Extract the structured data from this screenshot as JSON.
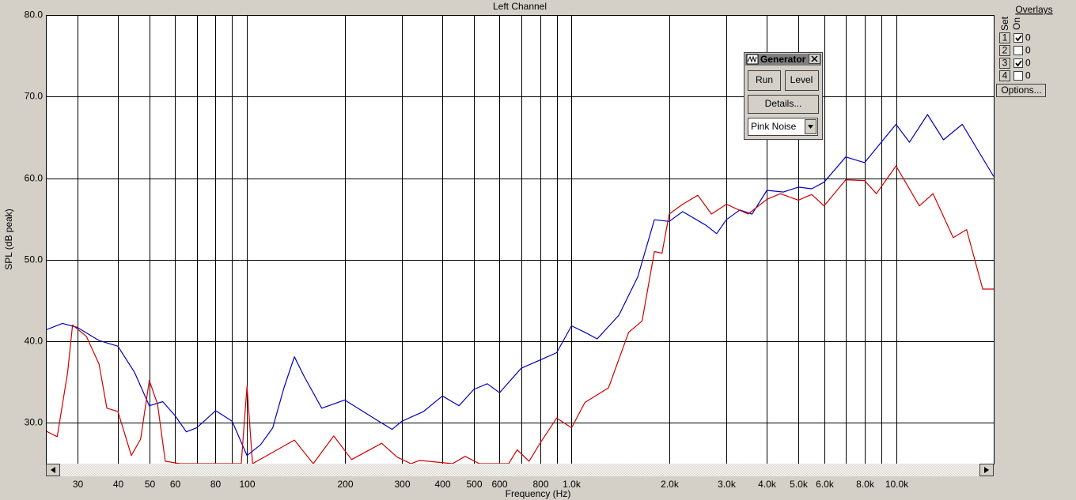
{
  "chart_data": {
    "type": "line",
    "title": "Left Channel",
    "xlabel": "Frequency (Hz)",
    "ylabel": "SPL (dB peak)",
    "xscale": "log",
    "xlim": [
      24,
      20000
    ],
    "ylim": [
      25,
      80
    ],
    "xticks": [
      30,
      40,
      50,
      60,
      80,
      100,
      200,
      300,
      400,
      500,
      600,
      800,
      {
        "value": 1000,
        "label": "1.0k"
      },
      {
        "value": 2000,
        "label": "2.0k"
      },
      {
        "value": 3000,
        "label": "3.0k"
      },
      {
        "value": 4000,
        "label": "4.0k"
      },
      {
        "value": 5000,
        "label": "5.0k"
      },
      {
        "value": 6000,
        "label": "6.0k"
      },
      {
        "value": 8000,
        "label": "8.0k"
      },
      {
        "value": 10000,
        "label": "10.0k"
      }
    ],
    "xgrid_minor": [
      70,
      90,
      700,
      900,
      7000,
      9000
    ],
    "yticks": [
      {
        "value": 30,
        "label": "30.0"
      },
      {
        "value": 40,
        "label": "40.0"
      },
      {
        "value": 50,
        "label": "50.0"
      },
      {
        "value": 60,
        "label": "60.0"
      },
      {
        "value": 70,
        "label": "70.0"
      },
      {
        "value": 80,
        "label": "80.0"
      }
    ],
    "grid": true,
    "series": [
      {
        "color": "#0000c0",
        "x": [
          24,
          27,
          30,
          35,
          40,
          45,
          50,
          55,
          60,
          65,
          70,
          80,
          90,
          100,
          110,
          120,
          130,
          140,
          150,
          170,
          200,
          250,
          280,
          300,
          350,
          400,
          450,
          500,
          550,
          600,
          700,
          800,
          900,
          1000,
          1100,
          1200,
          1400,
          1600,
          1800,
          2000,
          2200,
          2600,
          2800,
          3000,
          3300,
          3600,
          4000,
          4500,
          5000,
          5500,
          6000,
          7000,
          8000,
          9000,
          10000,
          11000,
          12500,
          14000,
          16000,
          20000
        ],
        "values": [
          41.4,
          42.2,
          41.7,
          40.1,
          39.4,
          36.2,
          32.1,
          32.6,
          30.9,
          28.9,
          29.4,
          31.5,
          30.2,
          26.0,
          27.3,
          29.4,
          34.3,
          38.1,
          35.7,
          31.8,
          32.8,
          30.4,
          29.2,
          30.2,
          31.4,
          33.3,
          32.1,
          34.1,
          34.8,
          33.7,
          36.7,
          37.7,
          38.6,
          41.9,
          41.1,
          40.3,
          43.2,
          47.9,
          54.9,
          54.7,
          55.9,
          54.2,
          53.2,
          54.9,
          56.1,
          55.6,
          58.5,
          58.3,
          58.9,
          58.7,
          59.5,
          62.6,
          61.9,
          64.4,
          66.6,
          64.4,
          67.8,
          64.7,
          66.6,
          60.2
        ]
      },
      {
        "color": "#d00000",
        "x": [
          24,
          26,
          28,
          29,
          32,
          35,
          37,
          40,
          44,
          47,
          50,
          53,
          56,
          62,
          96,
          100,
          104,
          140,
          160,
          185,
          210,
          260,
          290,
          320,
          340,
          430,
          470,
          520,
          640,
          680,
          740,
          800,
          900,
          1000,
          1100,
          1300,
          1500,
          1650,
          1800,
          1900,
          2000,
          2200,
          2450,
          2700,
          3000,
          3500,
          4000,
          4400,
          5000,
          5500,
          6000,
          7000,
          8000,
          8700,
          10000,
          11800,
          13000,
          15000,
          16500,
          18500,
          20000
        ],
        "values": [
          29.0,
          28.3,
          36.2,
          42.0,
          40.6,
          37.2,
          31.8,
          31.4,
          26.0,
          28.0,
          35.2,
          32.3,
          25.3,
          25.0,
          25.0,
          34.5,
          25.0,
          27.9,
          25.0,
          28.4,
          25.5,
          27.5,
          25.8,
          25.0,
          25.4,
          25.0,
          25.9,
          25.0,
          25.0,
          26.7,
          25.3,
          27.5,
          30.6,
          29.4,
          32.5,
          34.3,
          41.1,
          42.5,
          51.0,
          50.8,
          55.6,
          56.8,
          57.9,
          55.6,
          56.8,
          55.6,
          57.4,
          58.1,
          57.3,
          58.0,
          56.6,
          59.8,
          59.7,
          58.1,
          61.5,
          56.6,
          58.1,
          52.7,
          53.7,
          46.4,
          46.4
        ]
      }
    ]
  },
  "generator": {
    "title": "Generator",
    "run": "Run",
    "level": "Level",
    "details": "Details...",
    "signal": "Pink Noise"
  },
  "overlays": {
    "title": "Overlays",
    "set_label": "Set",
    "on_label": "On",
    "options": "Options...",
    "rows": [
      {
        "set": "1",
        "checked": true,
        "value": "0",
        "color": "#ff0000"
      },
      {
        "set": "2",
        "checked": false,
        "value": "0",
        "color": "#e000e0"
      },
      {
        "set": "3",
        "checked": true,
        "value": "0",
        "color": "#0000ff"
      },
      {
        "set": "4",
        "checked": false,
        "value": "0",
        "color": "#008000"
      }
    ]
  }
}
